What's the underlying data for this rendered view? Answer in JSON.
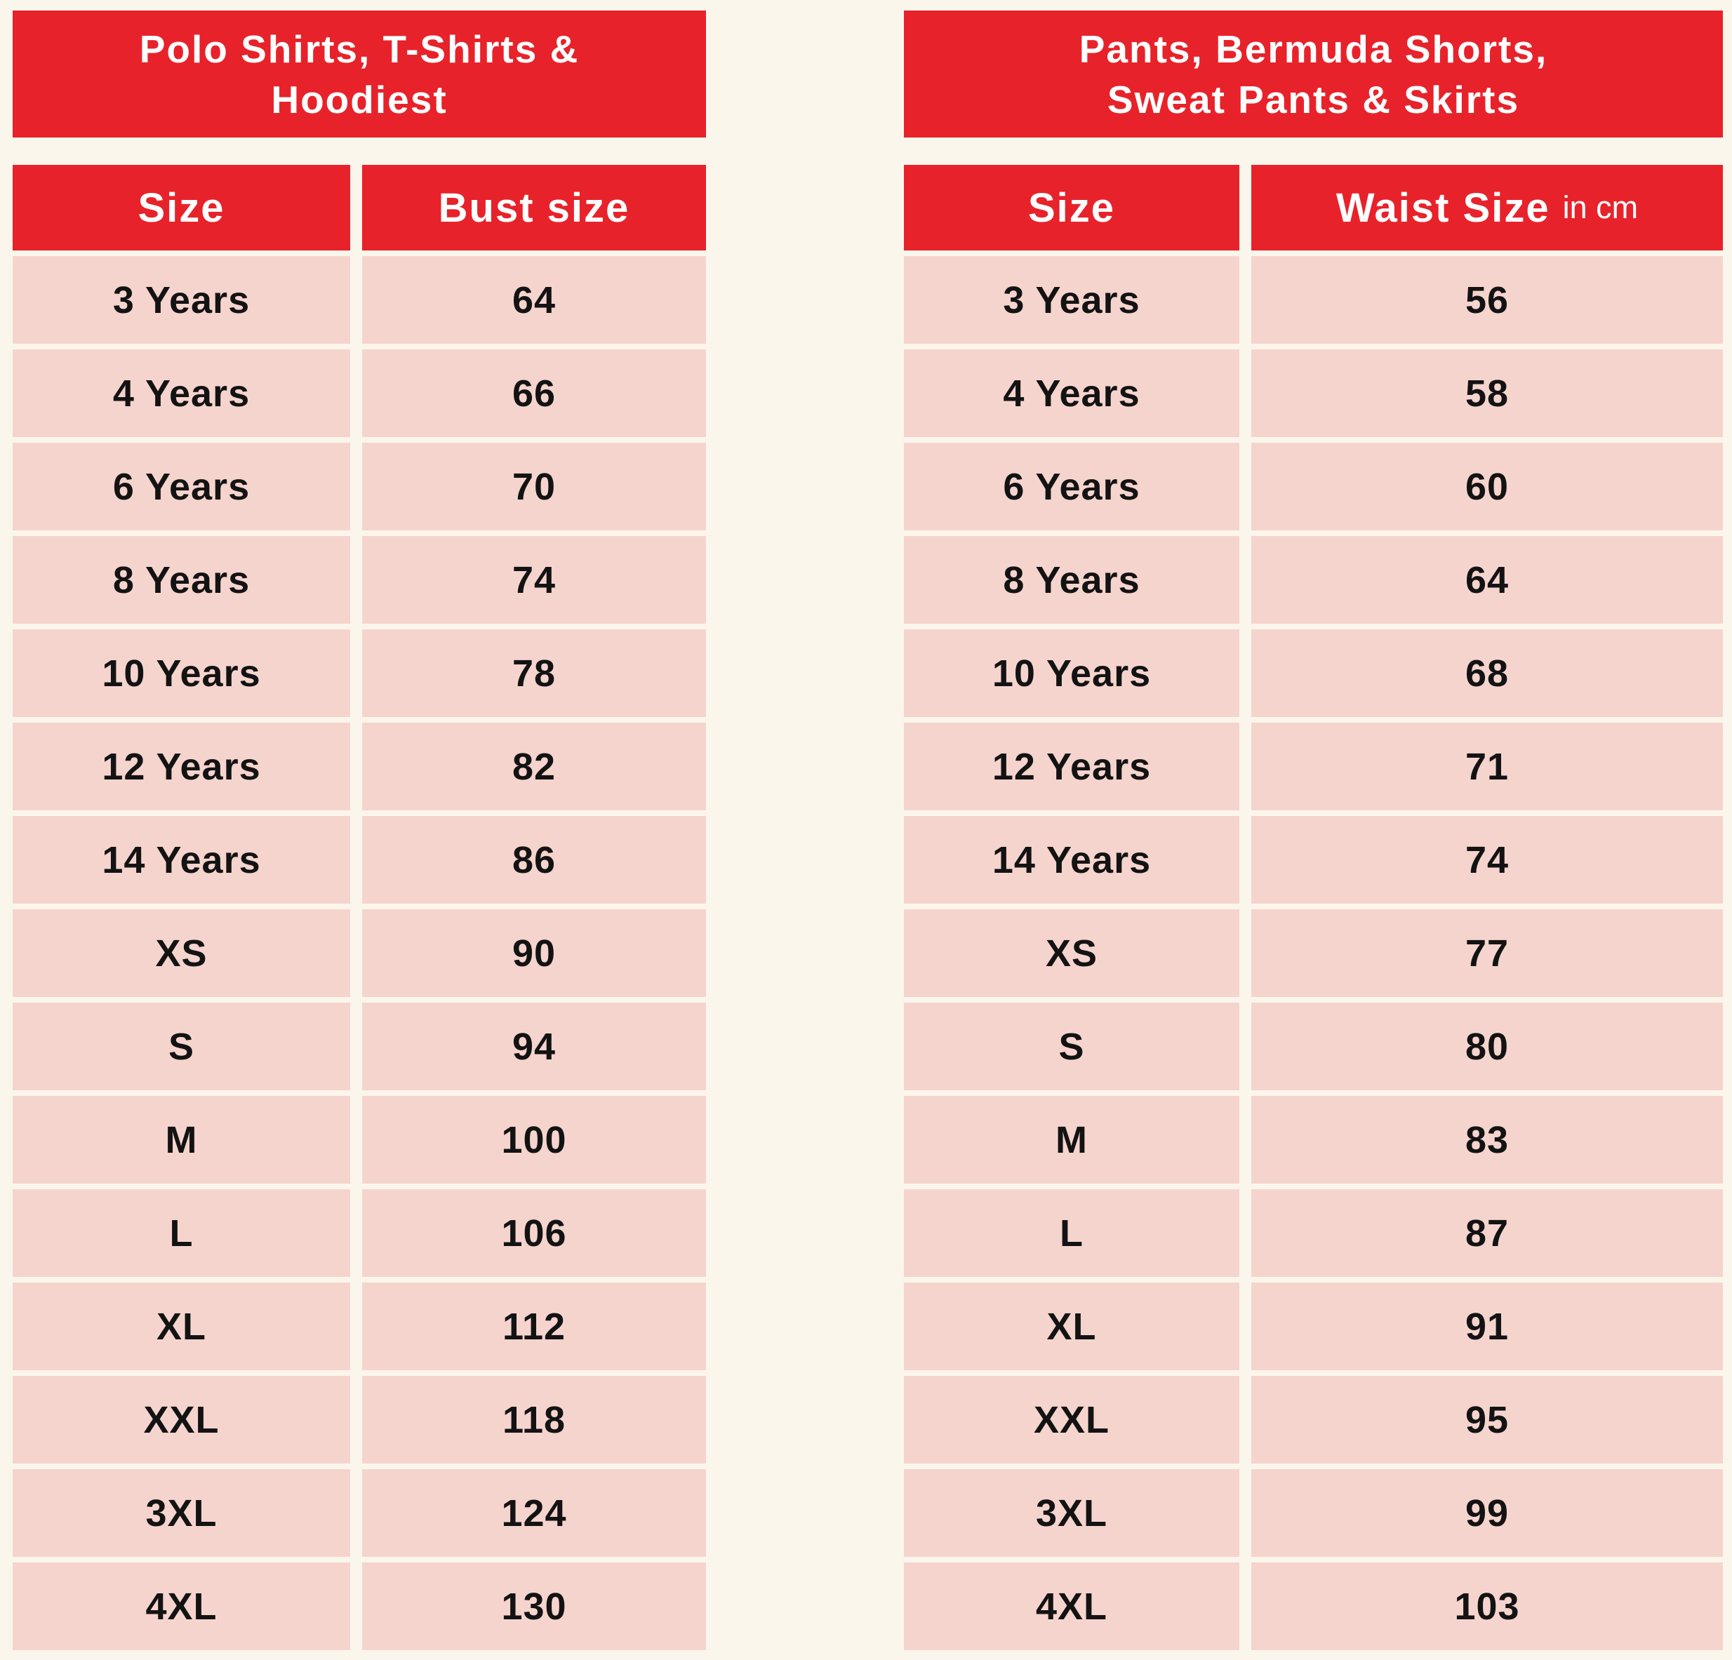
{
  "page": {
    "background_color": "#FBF6EC",
    "accent_red": "#E8222A",
    "row_pink": "#F6D4CE",
    "text_dark": "#131313",
    "text_white": "#FFFFFF"
  },
  "tables": [
    {
      "title": "Polo Shirts, T-Shirts & Hoodiest",
      "title_lines": [
        "Polo Shirts, T-Shirts &",
        "Hoodiest"
      ],
      "columns": [
        "Size",
        "Bust size"
      ],
      "unit_suffix": "",
      "rows": [
        [
          "3 Years",
          "64"
        ],
        [
          "4 Years",
          "66"
        ],
        [
          "6 Years",
          "70"
        ],
        [
          "8 Years",
          "74"
        ],
        [
          "10 Years",
          "78"
        ],
        [
          "12 Years",
          "82"
        ],
        [
          "14 Years",
          "86"
        ],
        [
          "XS",
          "90"
        ],
        [
          "S",
          "94"
        ],
        [
          "M",
          "100"
        ],
        [
          "L",
          "106"
        ],
        [
          "XL",
          "112"
        ],
        [
          "XXL",
          "118"
        ],
        [
          "3XL",
          "124"
        ],
        [
          "4XL",
          "130"
        ]
      ]
    },
    {
      "title": "Pants, Bermuda Shorts, Sweat Pants & Skirts",
      "title_lines": [
        "Pants, Bermuda Shorts,",
        "Sweat Pants & Skirts"
      ],
      "columns": [
        "Size",
        "Waist Size"
      ],
      "unit_suffix": "in cm",
      "rows": [
        [
          "3 Years",
          "56"
        ],
        [
          "4 Years",
          "58"
        ],
        [
          "6 Years",
          "60"
        ],
        [
          "8 Years",
          "64"
        ],
        [
          "10 Years",
          "68"
        ],
        [
          "12 Years",
          "71"
        ],
        [
          "14 Years",
          "74"
        ],
        [
          "XS",
          "77"
        ],
        [
          "S",
          "80"
        ],
        [
          "M",
          "83"
        ],
        [
          "L",
          "87"
        ],
        [
          "XL",
          "91"
        ],
        [
          "XXL",
          "95"
        ],
        [
          "3XL",
          "99"
        ],
        [
          "4XL",
          "103"
        ]
      ]
    }
  ]
}
